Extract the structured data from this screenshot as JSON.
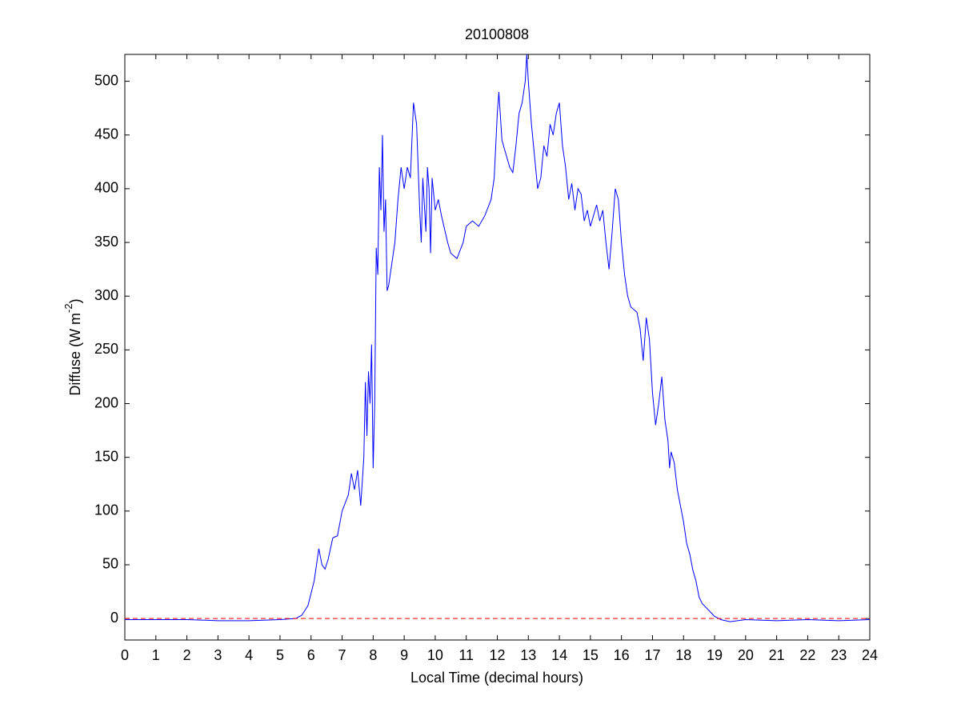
{
  "chart_data": {
    "type": "line",
    "title": "20100808",
    "xlabel": "Local Time (decimal hours)",
    "ylabel": {
      "text": "Diffuse (W m",
      "superscript": "-2",
      "suffix": ")"
    },
    "xlim": [
      0,
      24
    ],
    "ylim": [
      -20,
      525
    ],
    "xticks": [
      0,
      1,
      2,
      3,
      4,
      5,
      6,
      7,
      8,
      9,
      10,
      11,
      12,
      13,
      14,
      15,
      16,
      17,
      18,
      19,
      20,
      21,
      22,
      23,
      24
    ],
    "yticks": [
      0,
      50,
      100,
      150,
      200,
      250,
      300,
      350,
      400,
      450,
      500
    ],
    "grid": false,
    "hline": {
      "value": 0,
      "color": "#ff0000",
      "style": "dashed"
    },
    "series": [
      {
        "color": "#0000ff",
        "x": [
          0,
          1,
          2,
          3,
          4,
          5,
          5.5,
          5.7,
          5.9,
          6.1,
          6.25,
          6.35,
          6.45,
          6.55,
          6.7,
          6.85,
          7.0,
          7.2,
          7.3,
          7.4,
          7.5,
          7.6,
          7.7,
          7.75,
          7.8,
          7.85,
          7.9,
          7.95,
          8.0,
          8.05,
          8.1,
          8.15,
          8.2,
          8.25,
          8.3,
          8.35,
          8.4,
          8.45,
          8.5,
          8.6,
          8.7,
          8.8,
          8.9,
          9.0,
          9.1,
          9.2,
          9.3,
          9.4,
          9.5,
          9.55,
          9.6,
          9.7,
          9.75,
          9.8,
          9.85,
          9.9,
          10.0,
          10.1,
          10.2,
          10.4,
          10.5,
          10.7,
          10.9,
          11.0,
          11.2,
          11.4,
          11.6,
          11.8,
          11.9,
          12.0,
          12.05,
          12.15,
          12.3,
          12.4,
          12.5,
          12.6,
          12.7,
          12.8,
          12.9,
          12.95,
          13.0,
          13.1,
          13.2,
          13.3,
          13.4,
          13.5,
          13.6,
          13.7,
          13.8,
          13.9,
          14.0,
          14.1,
          14.2,
          14.3,
          14.4,
          14.5,
          14.6,
          14.7,
          14.8,
          14.9,
          15.0,
          15.1,
          15.2,
          15.3,
          15.4,
          15.5,
          15.6,
          15.7,
          15.8,
          15.9,
          16.0,
          16.1,
          16.2,
          16.3,
          16.5,
          16.6,
          16.7,
          16.8,
          16.9,
          17.0,
          17.1,
          17.2,
          17.3,
          17.4,
          17.5,
          17.55,
          17.6,
          17.7,
          17.8,
          17.9,
          18.0,
          18.1,
          18.2,
          18.3,
          18.4,
          18.5,
          18.6,
          18.8,
          19.0,
          19.2,
          19.5,
          20,
          21,
          22,
          23,
          24
        ],
        "values": [
          -1,
          -1,
          -1,
          -2,
          -2,
          -1,
          0,
          3,
          12,
          35,
          65,
          50,
          46,
          55,
          75,
          77,
          100,
          115,
          135,
          120,
          138,
          105,
          150,
          220,
          170,
          230,
          200,
          255,
          140,
          200,
          345,
          320,
          420,
          380,
          450,
          360,
          390,
          305,
          310,
          330,
          350,
          390,
          420,
          400,
          420,
          410,
          480,
          460,
          380,
          350,
          410,
          360,
          420,
          400,
          340,
          410,
          380,
          390,
          375,
          350,
          340,
          335,
          350,
          365,
          370,
          365,
          375,
          390,
          410,
          470,
          490,
          445,
          430,
          420,
          415,
          440,
          470,
          480,
          500,
          525,
          500,
          460,
          430,
          400,
          410,
          440,
          430,
          460,
          450,
          470,
          480,
          440,
          420,
          390,
          405,
          380,
          400,
          395,
          370,
          380,
          365,
          375,
          385,
          370,
          380,
          350,
          325,
          360,
          400,
          390,
          350,
          320,
          300,
          290,
          285,
          270,
          240,
          280,
          260,
          210,
          180,
          200,
          225,
          185,
          165,
          140,
          155,
          145,
          120,
          105,
          90,
          70,
          60,
          45,
          35,
          20,
          14,
          8,
          2,
          -1,
          -3,
          -1,
          -2,
          -1,
          -2,
          -1
        ]
      }
    ]
  }
}
